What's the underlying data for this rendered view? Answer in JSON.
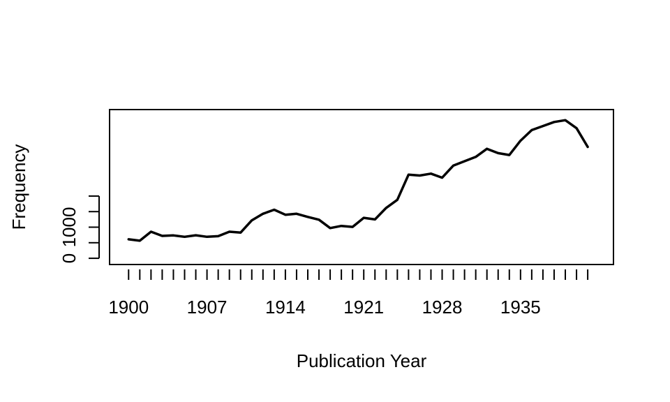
{
  "chart_data": {
    "type": "line",
    "title": "",
    "xlabel": "Publication Year",
    "ylabel": "Frequency",
    "x": [
      1900,
      1901,
      1902,
      1903,
      1904,
      1905,
      1906,
      1907,
      1908,
      1909,
      1910,
      1911,
      1912,
      1913,
      1914,
      1915,
      1916,
      1917,
      1918,
      1919,
      1920,
      1921,
      1922,
      1923,
      1924,
      1925,
      1926,
      1927,
      1928,
      1929,
      1930,
      1931,
      1932,
      1933,
      1934,
      1935,
      1936,
      1937,
      1938,
      1939,
      1940,
      1941
    ],
    "series": [
      {
        "values": [
          610,
          565,
          855,
          720,
          735,
          690,
          740,
          690,
          710,
          855,
          825,
          1220,
          1430,
          1560,
          1400,
          1430,
          1330,
          1240,
          970,
          1040,
          1010,
          1300,
          1250,
          1620,
          1880,
          2690,
          2660,
          2720,
          2590,
          2980,
          3120,
          3260,
          3520,
          3380,
          3320,
          3780,
          4120,
          4250,
          4380,
          4440,
          4180,
          3580
        ]
      }
    ],
    "x_ticks": [
      "1900",
      "1907",
      "1914",
      "1921",
      "1928",
      "1935"
    ],
    "y_ticks": [
      "0",
      "1000"
    ],
    "xlim": [
      1898.3,
      1943.3
    ],
    "ylim": [
      -200,
      4780
    ],
    "line_color": "#000000",
    "grid": false
  }
}
